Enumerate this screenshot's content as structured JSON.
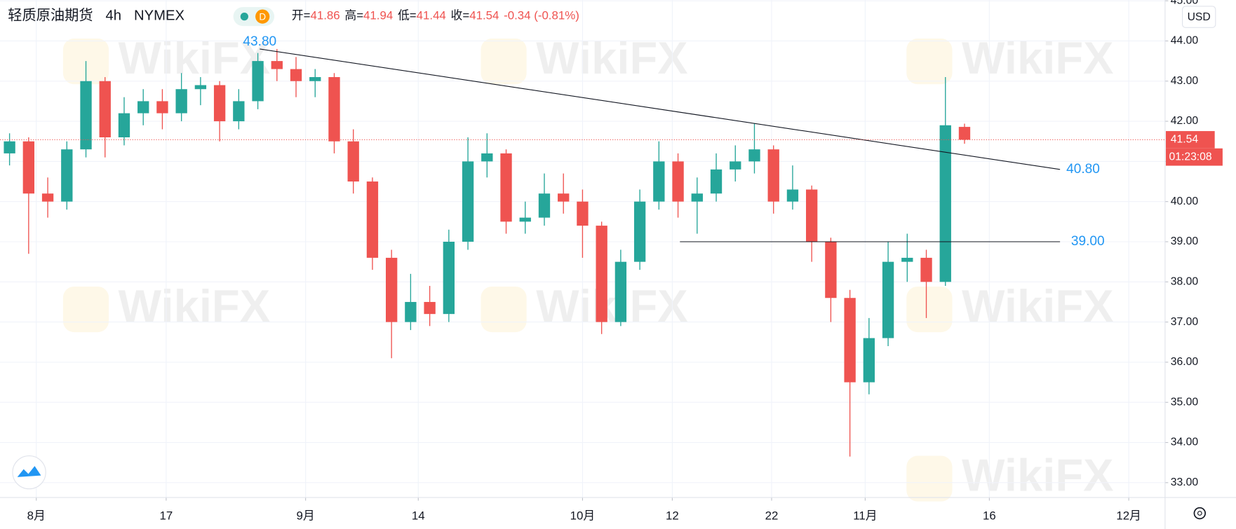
{
  "chart_data": {
    "type": "candlestick",
    "legend": {
      "symbol": "轻质原油期货",
      "interval": "4h",
      "exchange": "NYMEX",
      "badge": "D",
      "items": [
        {
          "label": "开=",
          "value": 41.86
        },
        {
          "label": "高=",
          "value": 41.94
        },
        {
          "label": "低=",
          "value": 41.44
        },
        {
          "label": "收=",
          "value": 41.54
        }
      ],
      "change": "-0.34 (-0.81%)"
    },
    "currency": "USD",
    "watermark": "WikiFX",
    "up_color": "#26a69a",
    "down_color": "#ef5350",
    "open": [
      41.2,
      41.5,
      40.2,
      40.0,
      41.3,
      43.0,
      41.6,
      42.2,
      42.5,
      42.2,
      42.8,
      42.9,
      42.0,
      42.5,
      43.5,
      43.3,
      43.0,
      43.1,
      41.5,
      40.5,
      38.6,
      37.0,
      37.5,
      37.2,
      39.0,
      41.0,
      41.2,
      39.5,
      39.6,
      40.2,
      40.0,
      39.4,
      37.0,
      38.5,
      40.0,
      41.0,
      40.0,
      40.2,
      40.8,
      41.0,
      41.3,
      40.0,
      40.3,
      39.0,
      37.6,
      35.5,
      36.6,
      38.5,
      38.6,
      38.0,
      41.86
    ],
    "high": [
      41.7,
      41.6,
      40.6,
      41.5,
      43.5,
      43.1,
      42.6,
      42.8,
      42.8,
      43.2,
      43.1,
      43.0,
      42.8,
      43.7,
      43.8,
      43.6,
      43.3,
      43.2,
      41.8,
      40.6,
      38.8,
      38.2,
      37.9,
      39.3,
      41.6,
      41.7,
      41.3,
      40.0,
      40.7,
      40.7,
      40.3,
      39.5,
      38.8,
      40.3,
      41.5,
      41.2,
      40.6,
      41.2,
      41.4,
      41.95,
      41.4,
      40.9,
      40.4,
      39.1,
      37.8,
      37.1,
      39.0,
      39.2,
      38.8,
      43.1,
      41.94
    ],
    "low": [
      40.9,
      38.7,
      39.6,
      39.8,
      41.1,
      41.1,
      41.4,
      41.9,
      41.8,
      42.0,
      42.4,
      41.5,
      41.8,
      42.3,
      43.0,
      42.6,
      42.6,
      41.2,
      40.2,
      38.3,
      36.1,
      36.8,
      36.9,
      37.0,
      38.8,
      40.6,
      39.2,
      39.2,
      39.4,
      39.7,
      38.6,
      36.7,
      36.9,
      38.3,
      39.8,
      39.6,
      39.2,
      40.0,
      40.5,
      40.7,
      39.7,
      39.8,
      38.5,
      37.0,
      33.65,
      35.2,
      36.4,
      38.0,
      37.1,
      37.9,
      41.44
    ],
    "close": [
      41.5,
      40.2,
      40.0,
      41.3,
      43.0,
      41.6,
      42.2,
      42.5,
      42.2,
      42.8,
      42.9,
      42.0,
      42.5,
      43.5,
      43.3,
      43.0,
      43.1,
      41.5,
      40.5,
      38.6,
      37.0,
      37.5,
      37.2,
      39.0,
      41.0,
      41.2,
      39.5,
      39.6,
      40.2,
      40.0,
      39.4,
      37.0,
      38.5,
      40.0,
      41.0,
      40.0,
      40.2,
      40.8,
      41.0,
      41.3,
      40.0,
      40.3,
      39.0,
      37.6,
      35.5,
      36.6,
      38.5,
      38.6,
      38.0,
      41.9,
      41.54
    ],
    "xlim": [
      0,
      61
    ],
    "xticks": [
      {
        "value": 1.9,
        "label": "8月"
      },
      {
        "value": 8.7,
        "label": "17"
      },
      {
        "value": 16.0,
        "label": "9月"
      },
      {
        "value": 21.9,
        "label": "14"
      },
      {
        "value": 30.5,
        "label": "10月"
      },
      {
        "value": 35.2,
        "label": "12"
      },
      {
        "value": 40.4,
        "label": "22"
      },
      {
        "value": 45.3,
        "label": "11月"
      },
      {
        "value": 51.8,
        "label": "16"
      },
      {
        "value": 59.1,
        "label": "12月"
      }
    ],
    "ylim": [
      32.63,
      45.02
    ],
    "yticks": [
      {
        "value": 33,
        "label": "33.00"
      },
      {
        "value": 34,
        "label": "34.00"
      },
      {
        "value": 35,
        "label": "35.00"
      },
      {
        "value": 36,
        "label": "36.00"
      },
      {
        "value": 37,
        "label": "37.00"
      },
      {
        "value": 38,
        "label": "38.00"
      },
      {
        "value": 39,
        "label": "39.00"
      },
      {
        "value": 40,
        "label": "40.00"
      },
      {
        "value": 41,
        "label": "41.00"
      },
      {
        "value": 42,
        "label": "42.00"
      },
      {
        "value": 43,
        "label": "43.00"
      },
      {
        "value": 44,
        "label": "44.00"
      },
      {
        "value": 45,
        "label": "45.00"
      }
    ],
    "grid": true,
    "last_price": 41.54,
    "countdown": "01:23:08",
    "trendline": {
      "x1": 13.6,
      "x2": 55.5,
      "start": {
        "value": 43.8,
        "label": "43.80"
      },
      "end": {
        "value": 40.8,
        "label": "40.80"
      }
    },
    "support": {
      "x1": 35.6,
      "x2": 55.5,
      "level": {
        "value": 39,
        "label": "39.00"
      }
    }
  }
}
